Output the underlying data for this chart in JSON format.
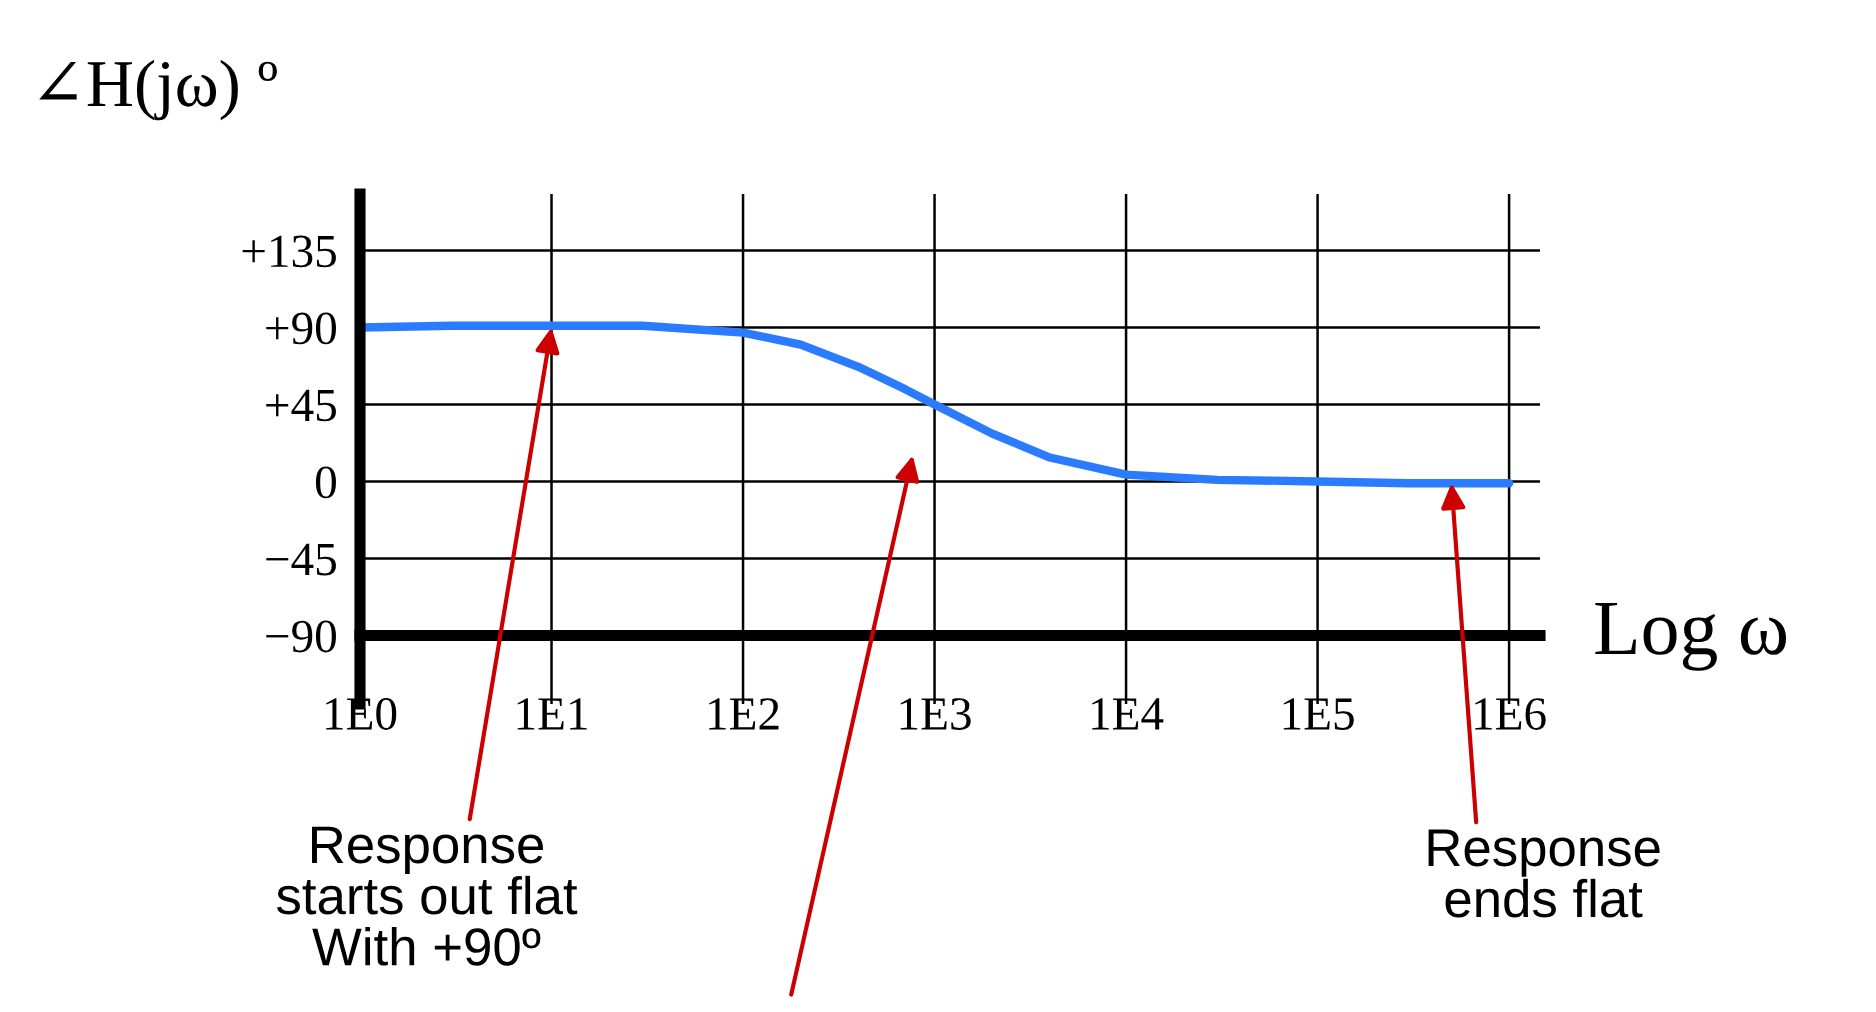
{
  "chart_data": {
    "type": "line",
    "ylabel": "∠H(jω) º",
    "xlabel": "Log ω",
    "log": "x",
    "x": [
      1,
      3,
      10,
      30,
      100,
      200,
      400,
      700,
      1000,
      2000,
      4000,
      10000,
      30000,
      100000,
      300000,
      1000000
    ],
    "series": [
      {
        "color": "#2b7bff",
        "values": [
          90,
          91,
          91,
          91,
          87,
          80,
          67,
          54,
          45,
          28,
          14,
          4,
          1,
          0,
          -1,
          -1
        ]
      }
    ],
    "xlim": [
      1,
      1450000
    ],
    "ylim": [
      -130,
      168
    ],
    "xticks": [
      {
        "value": 1,
        "label": "1E0"
      },
      {
        "value": 10,
        "label": "1E1"
      },
      {
        "value": 100,
        "label": "1E2"
      },
      {
        "value": 1000,
        "label": "1E3"
      },
      {
        "value": 10000,
        "label": "1E4"
      },
      {
        "value": 100000,
        "label": "1E5"
      },
      {
        "value": 1000000,
        "label": "1E6"
      }
    ],
    "yticks": [
      {
        "value": 135,
        "label": "+135"
      },
      {
        "value": 90,
        "label": "+90"
      },
      {
        "value": 45,
        "label": "+45"
      },
      0,
      {
        "value": -45,
        "label": "−45"
      },
      {
        "value": -90,
        "label": "−90"
      }
    ],
    "grid": true,
    "annotations": [
      {
        "text": "Response\nstarts out flat\nWith +90º",
        "x": 10,
        "y": 90
      },
      {
        "text": "Response\nends flat",
        "x": 500000,
        "y": -1
      }
    ]
  }
}
